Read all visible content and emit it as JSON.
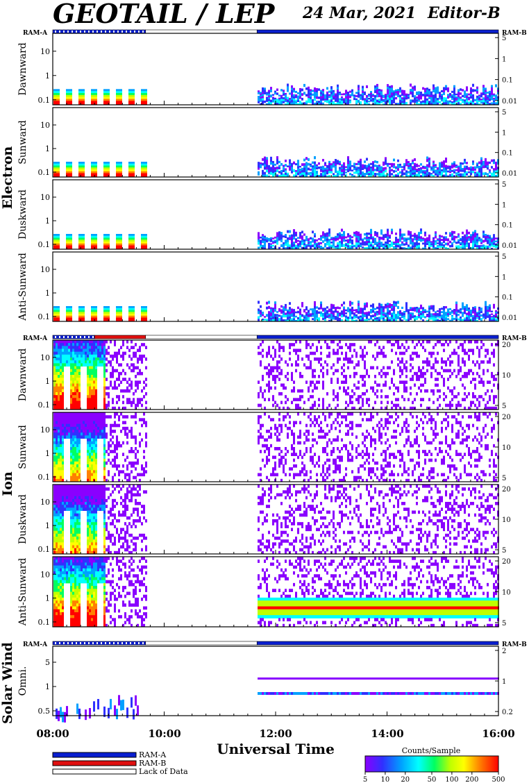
{
  "header": {
    "title": "GEOTAIL / LEP",
    "date": "24 Mar, 2021",
    "editor": "Editor-B"
  },
  "sections": {
    "electron": "Electron",
    "ion": "Ion",
    "solar_wind": "Solar Wind"
  },
  "ram_labels": {
    "left": "RAM-A",
    "right": "RAM-B"
  },
  "xaxis": {
    "title": "Universal Time",
    "ticks": [
      "08:00",
      "10:00",
      "12:00",
      "14:00",
      "16:00"
    ],
    "range": [
      "08:00",
      "16:00"
    ]
  },
  "legend": {
    "items": [
      {
        "label": "RAM-A",
        "color": "#0a1fd0"
      },
      {
        "label": "RAM-B",
        "color": "#e01010"
      },
      {
        "label": "Lack of Data",
        "color": "#ffffff"
      }
    ]
  },
  "colorbar": {
    "title": "Counts/Sample",
    "ticks": [
      "5",
      "10",
      "20",
      "50",
      "100",
      "200",
      "500"
    ],
    "scale": "log",
    "range": [
      5,
      500
    ]
  },
  "colors": {
    "ram_a": "#0a1fd0",
    "ram_b": "#e01010",
    "spectrogram_colormap": [
      "#8a00ff",
      "#3030ff",
      "#00a0ff",
      "#00ffff",
      "#00ff60",
      "#c0ff00",
      "#ffff00",
      "#ff8000",
      "#ff0000"
    ]
  },
  "chart_data": {
    "type": "heatmap",
    "time_range": [
      "08:00",
      "16:00"
    ],
    "data_gap": [
      "09:40",
      "11:40"
    ],
    "panels": [
      {
        "group": "electron",
        "ylabel": "Dawnward",
        "left_ticks": [
          "0.1",
          "1",
          "10"
        ],
        "right_ticks": [
          "0.01",
          "0.1",
          "1",
          "5"
        ]
      },
      {
        "group": "electron",
        "ylabel": "Sunward",
        "left_ticks": [
          "0.1",
          "1",
          "10"
        ],
        "right_ticks": [
          "0.01",
          "0.1",
          "1",
          "5"
        ]
      },
      {
        "group": "electron",
        "ylabel": "Duskward",
        "left_ticks": [
          "0.1",
          "1",
          "10"
        ],
        "right_ticks": [
          "0.01",
          "0.1",
          "1",
          "5"
        ]
      },
      {
        "group": "electron",
        "ylabel": "Anti-Sunward",
        "left_ticks": [
          "0.1",
          "1",
          "10"
        ],
        "right_ticks": [
          "0.01",
          "0.1",
          "1",
          "5"
        ]
      },
      {
        "group": "ion",
        "ylabel": "Dawnward",
        "left_ticks": [
          "0.1",
          "1",
          "10"
        ],
        "right_ticks": [
          "5",
          "10",
          "20"
        ]
      },
      {
        "group": "ion",
        "ylabel": "Sunward",
        "left_ticks": [
          "0.1",
          "1",
          "10"
        ],
        "right_ticks": [
          "5",
          "10",
          "20"
        ]
      },
      {
        "group": "ion",
        "ylabel": "Duskward",
        "left_ticks": [
          "0.1",
          "1",
          "10"
        ],
        "right_ticks": [
          "5",
          "10",
          "20"
        ]
      },
      {
        "group": "ion",
        "ylabel": "Anti-Sunward",
        "left_ticks": [
          "0.1",
          "1",
          "10"
        ],
        "right_ticks": [
          "5",
          "10",
          "20"
        ]
      },
      {
        "group": "solar_wind",
        "ylabel": "Omni.",
        "left_ticks": [
          "0.5",
          "1",
          "5"
        ],
        "right_ticks": [
          "0.2",
          "1",
          "2"
        ]
      }
    ],
    "ram_bars": [
      {
        "segments": [
          {
            "from": "08:00",
            "to": "09:40",
            "state": "RAM-A"
          },
          {
            "from": "09:40",
            "to": "11:40",
            "state": "Lack of Data"
          },
          {
            "from": "11:40",
            "to": "16:00",
            "state": "RAM-A"
          }
        ]
      },
      {
        "segments": [
          {
            "from": "08:00",
            "to": "08:45",
            "state": "RAM-A"
          },
          {
            "from": "08:45",
            "to": "09:40",
            "state": "RAM-B"
          },
          {
            "from": "09:40",
            "to": "11:40",
            "state": "Lack of Data"
          },
          {
            "from": "11:40",
            "to": "16:00",
            "state": "RAM-A"
          }
        ]
      },
      {
        "segments": [
          {
            "from": "08:00",
            "to": "09:40",
            "state": "RAM-A"
          },
          {
            "from": "09:40",
            "to": "11:40",
            "state": "Lack of Data"
          },
          {
            "from": "11:40",
            "to": "16:00",
            "state": "RAM-A"
          }
        ]
      }
    ]
  }
}
